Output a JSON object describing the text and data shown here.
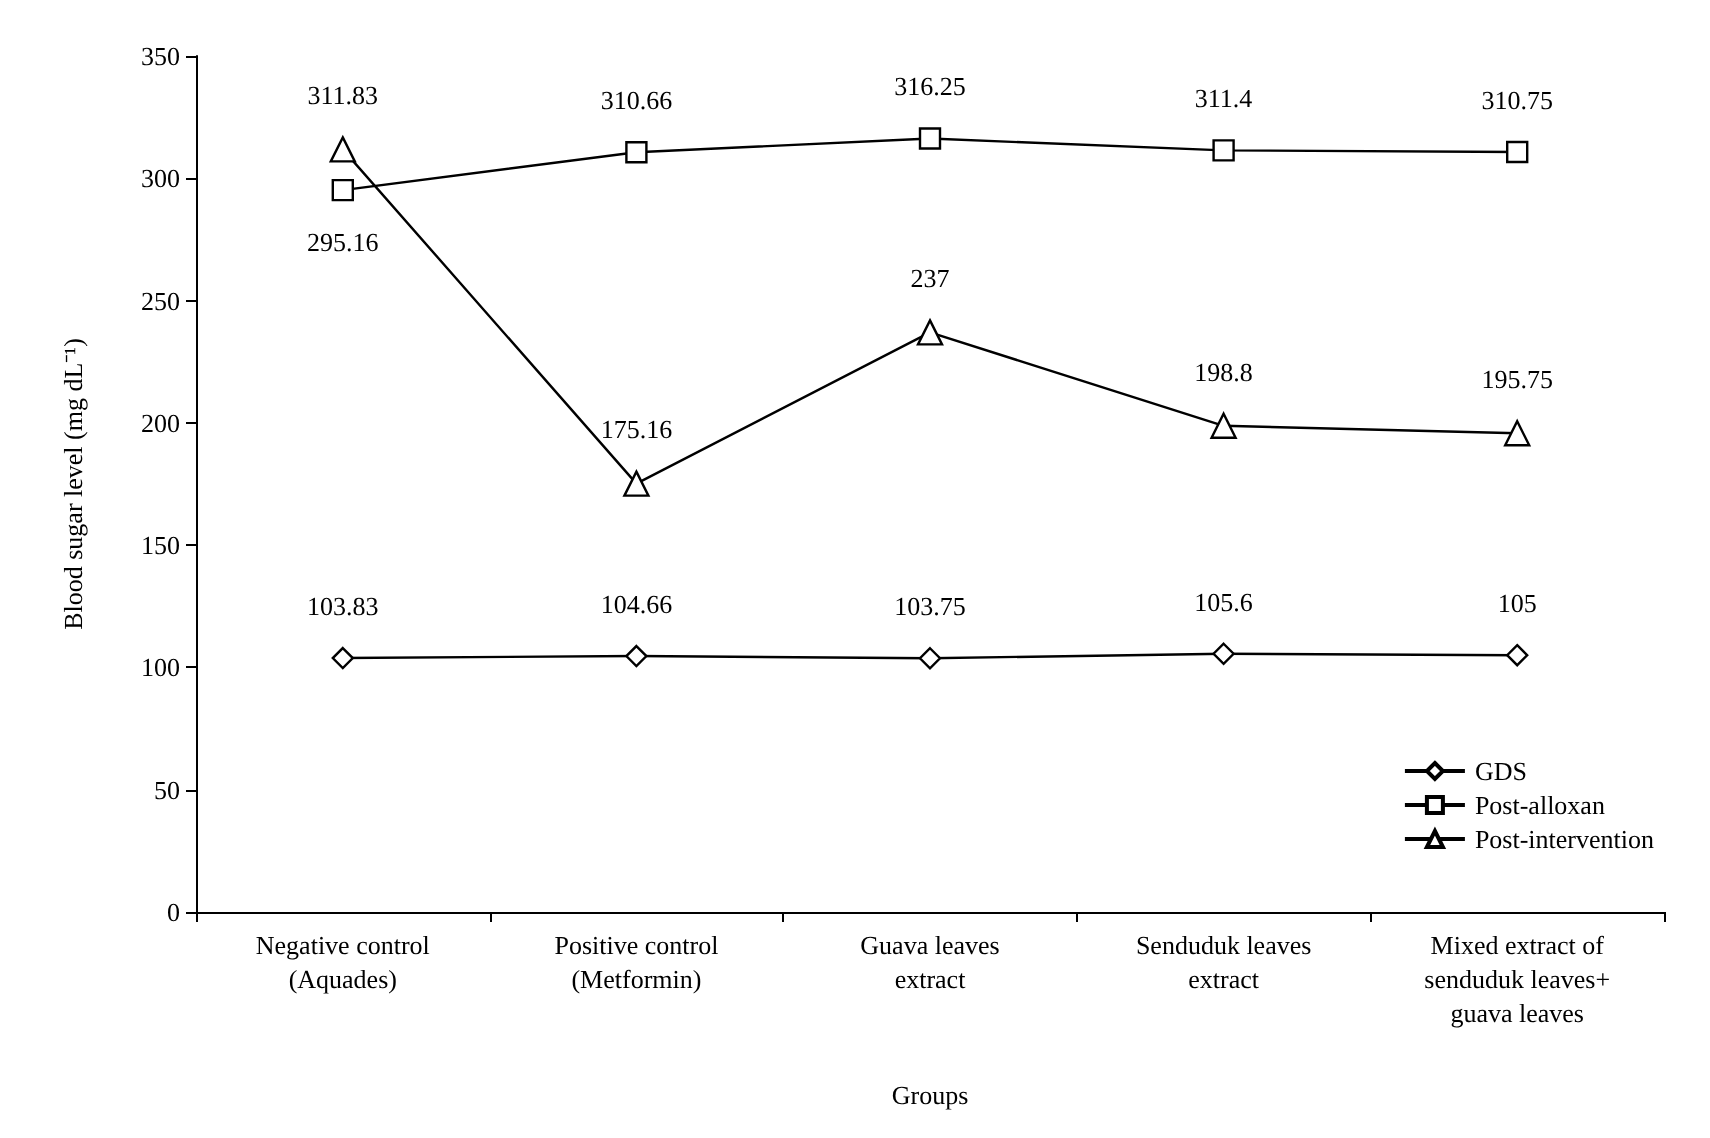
{
  "chart_data": {
    "type": "line",
    "xlabel": "Groups",
    "ylabel": "Blood sugar level (mg dL⁻¹)",
    "categories": [
      "Negative control\n(Aquades)",
      "Positive control\n(Metformin)",
      "Guava leaves\nextract",
      "Senduduk leaves\nextract",
      "Mixed extract of\nsenduduk leaves+\nguava leaves"
    ],
    "series": [
      {
        "name": "GDS",
        "color": "#000000",
        "marker": "diamond",
        "values": [
          103.83,
          104.66,
          103.75,
          105.6,
          105
        ]
      },
      {
        "name": "Post-alloxan",
        "color": "#000000",
        "marker": "square",
        "values": [
          295.16,
          310.66,
          316.25,
          311.4,
          310.75
        ]
      },
      {
        "name": "Post-intervention",
        "color": "#000000",
        "marker": "triangle",
        "values": [
          311.83,
          175.16,
          237,
          198.8,
          195.75
        ]
      }
    ],
    "ylim": [
      0,
      350
    ],
    "yticks": [
      0,
      50,
      100,
      150,
      200,
      250,
      300,
      350
    ],
    "grid": false,
    "legend": "bottom right",
    "data_labels": true,
    "line_style": "solid"
  }
}
